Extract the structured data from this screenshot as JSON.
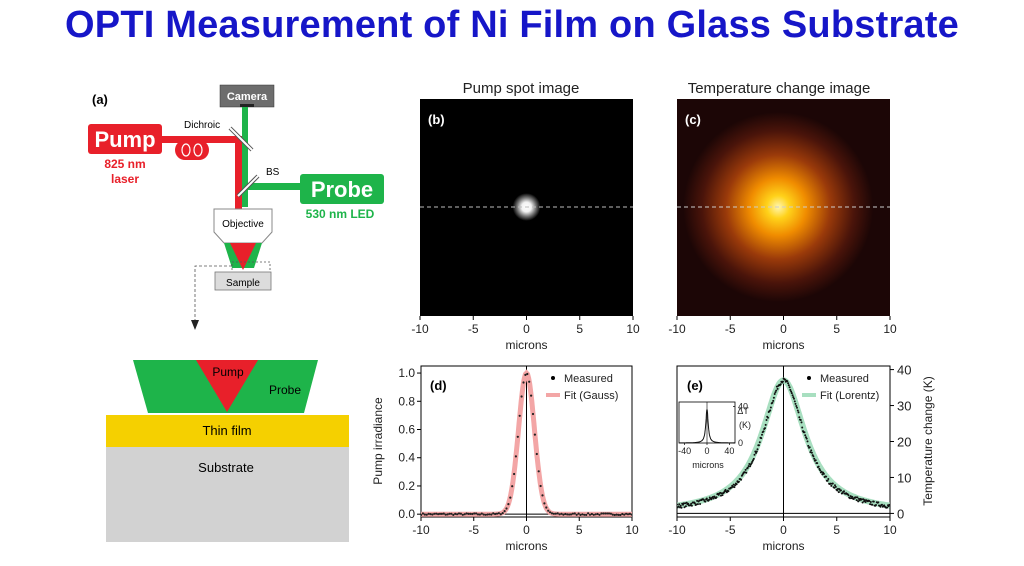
{
  "slide": {
    "title": "OPTI Measurement of Ni Film on Glass Substrate"
  },
  "panel_a": {
    "label": "(a)",
    "camera": "Camera",
    "dichroic": "Dichroic",
    "bs": "BS",
    "pump": "Pump",
    "pump_spec1": "825 nm",
    "pump_spec2": "laser",
    "probe": "Probe",
    "probe_spec": "530 nm LED",
    "objective": "Objective",
    "sample": "Sample",
    "detail_pump": "Pump",
    "detail_probe": "Probe",
    "thin_film": "Thin film",
    "substrate": "Substrate"
  },
  "panel_b": {
    "title": "Pump spot image",
    "label": "(b)"
  },
  "panel_c": {
    "title": "Temperature change image",
    "label": "(c)"
  },
  "panel_d": {
    "label": "(d)",
    "legend_measured": "Measured",
    "legend_fit": "Fit (Gauss)"
  },
  "panel_e": {
    "label": "(e)",
    "legend_measured": "Measured",
    "legend_fit": "Fit (Lorentz)",
    "inset_ylabel_1": "ΔT",
    "inset_ylabel_2": "(K)",
    "inset_xlabel": "microns"
  },
  "colors": {
    "title": "#1616c8",
    "pump": "#e8202a",
    "probe": "#1eb44a",
    "thin_film": "#f5d000",
    "substrate": "#d2d2d2",
    "fit_gauss": "#f3a6a6",
    "fit_lorentz": "#a8dfc0"
  },
  "chart_data": [
    {
      "type": "heatmap",
      "id": "b",
      "title": "Pump spot image",
      "xlabel": "microns",
      "x_ticks": [
        "-10",
        "-5",
        "0",
        "5",
        "10"
      ],
      "xlim": [
        -10,
        10
      ],
      "center": [
        0,
        0
      ],
      "width_um": 0.9,
      "colormap": "gray"
    },
    {
      "type": "heatmap",
      "id": "c",
      "title": "Temperature change image",
      "xlabel": "microns",
      "x_ticks": [
        "-10",
        "-5",
        "0",
        "5",
        "10"
      ],
      "xlim": [
        -10,
        10
      ],
      "center": [
        -0.5,
        0
      ],
      "width_um": 2.2,
      "colormap": "hot"
    },
    {
      "type": "line",
      "id": "d",
      "xlabel": "microns",
      "ylabel": "Pump irradiance",
      "x_ticks": [
        "-10",
        "-5",
        "0",
        "5",
        "10"
      ],
      "y_ticks": [
        "0.0",
        "0.2",
        "0.4",
        "0.6",
        "0.8",
        "1.0"
      ],
      "xlim": [
        -10,
        10
      ],
      "ylim": [
        -0.02,
        1.05
      ],
      "series": [
        {
          "name": "Measured",
          "model": "gauss",
          "amplitude": 1.0,
          "center": 0,
          "sigma": 0.75,
          "style": "points"
        },
        {
          "name": "Fit (Gauss)",
          "model": "gauss",
          "amplitude": 1.0,
          "center": 0,
          "sigma": 0.75,
          "style": "line"
        }
      ]
    },
    {
      "type": "line",
      "id": "e",
      "xlabel": "microns",
      "ylabel": "Temperature change (K)",
      "x_ticks": [
        "-10",
        "-5",
        "0",
        "5",
        "10"
      ],
      "y_ticks": [
        "0",
        "10",
        "20",
        "30",
        "40"
      ],
      "xlim": [
        -10,
        10
      ],
      "ylim": [
        -1,
        41
      ],
      "series": [
        {
          "name": "Measured",
          "model": "lorentz",
          "amplitude": 37,
          "center": 0,
          "gamma": 2.4,
          "style": "points"
        },
        {
          "name": "Fit (Lorentz)",
          "model": "lorentz",
          "amplitude": 37,
          "center": 0,
          "gamma": 2.5,
          "style": "line"
        }
      ],
      "inset": {
        "xlabel": "microns",
        "x_ticks": [
          "-40",
          "0",
          "40"
        ],
        "y_ticks": [
          "0",
          "40"
        ],
        "xlim": [
          -50,
          50
        ],
        "ylim": [
          0,
          45
        ],
        "model": "lorentz",
        "amplitude": 37,
        "gamma": 2.5
      }
    }
  ]
}
